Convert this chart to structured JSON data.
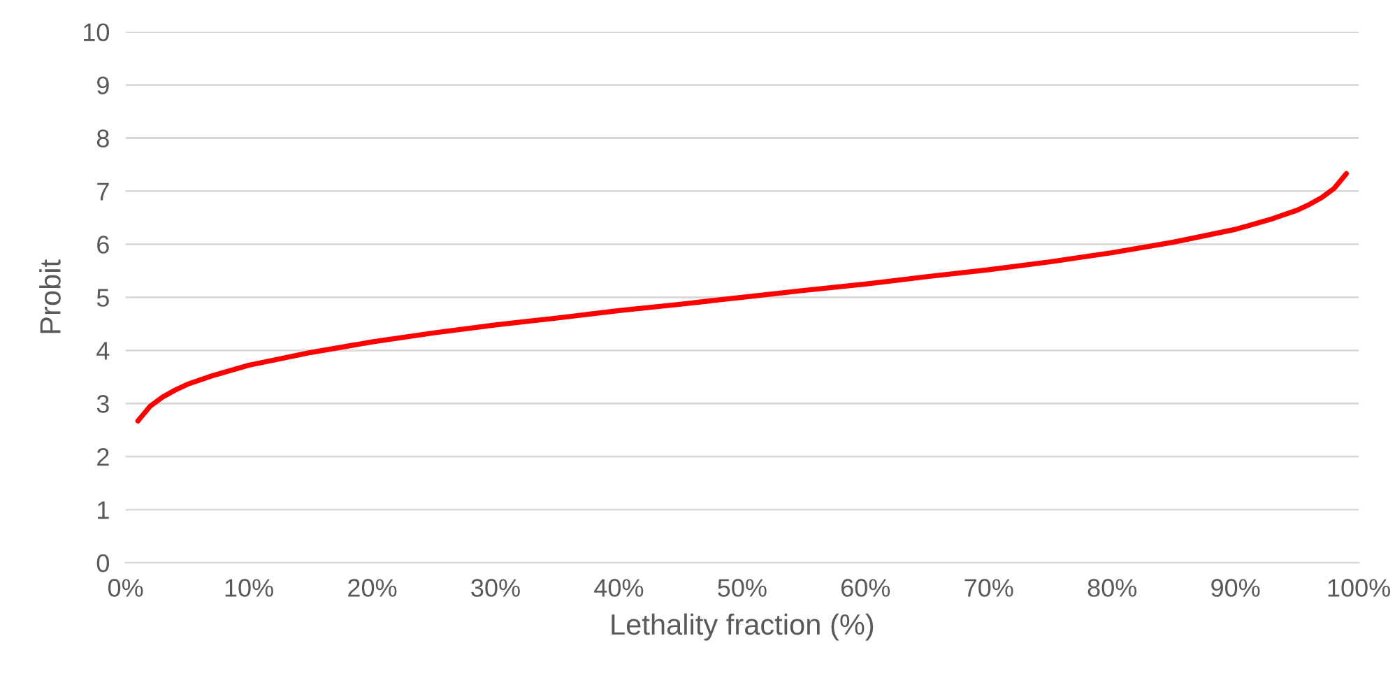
{
  "chart_data": {
    "type": "line",
    "xlabel": "Lethality fraction (%)",
    "ylabel": "Probit",
    "x": [
      0.01,
      0.02,
      0.03,
      0.04,
      0.05,
      0.07,
      0.1,
      0.15,
      0.2,
      0.25,
      0.3,
      0.35,
      0.4,
      0.45,
      0.5,
      0.55,
      0.6,
      0.65,
      0.7,
      0.75,
      0.8,
      0.85,
      0.9,
      0.93,
      0.95,
      0.96,
      0.97,
      0.98,
      0.99
    ],
    "series": [
      {
        "color": "#ff0000",
        "values": [
          2.67,
          2.95,
          3.12,
          3.25,
          3.36,
          3.52,
          3.72,
          3.96,
          4.16,
          4.33,
          4.48,
          4.61,
          4.75,
          4.87,
          5.0,
          5.13,
          5.25,
          5.39,
          5.52,
          5.67,
          5.84,
          6.04,
          6.28,
          6.48,
          6.64,
          6.75,
          6.88,
          7.05,
          7.33
        ]
      }
    ],
    "xlim": [
      0,
      1
    ],
    "xticks": [
      {
        "value": 0,
        "label": "0%"
      },
      {
        "value": 0.1,
        "label": "10%"
      },
      {
        "value": 0.2,
        "label": "20%"
      },
      {
        "value": 0.3,
        "label": "30%"
      },
      {
        "value": 0.4,
        "label": "40%"
      },
      {
        "value": 0.5,
        "label": "50%"
      },
      {
        "value": 0.6,
        "label": "60%"
      },
      {
        "value": 0.7,
        "label": "70%"
      },
      {
        "value": 0.8,
        "label": "80%"
      },
      {
        "value": 0.9,
        "label": "90%"
      },
      {
        "value": 1,
        "label": "100%"
      }
    ],
    "ylim": [
      0,
      10
    ],
    "yticks": [
      0,
      1,
      2,
      3,
      4,
      5,
      6,
      7,
      8,
      9,
      10
    ],
    "grid": "y",
    "marker": "none",
    "line_style": "solid"
  }
}
